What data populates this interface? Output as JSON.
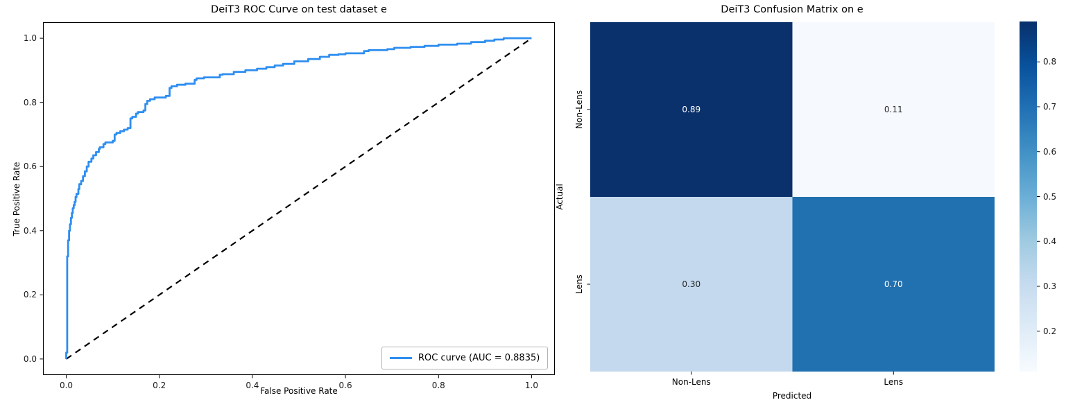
{
  "figure": {
    "background": "#ffffff"
  },
  "roc": {
    "title": "DeiT3 ROC Curve on test dataset e",
    "xlabel": "False Positive Rate",
    "ylabel": "True Positive Rate",
    "x_ticks": [
      "0.0",
      "0.2",
      "0.4",
      "0.6",
      "0.8",
      "1.0"
    ],
    "y_ticks": [
      "0.0",
      "0.2",
      "0.4",
      "0.6",
      "0.8",
      "1.0"
    ],
    "curve_color": "#2e8ef0",
    "diagonal_color": "#000000",
    "legend": {
      "label": "ROC curve (AUC = 0.8835)"
    }
  },
  "cm": {
    "title": "DeiT3 Confusion Matrix on e",
    "xlabel": "Predicted",
    "ylabel": "Actual",
    "row_labels": [
      "Non-Lens",
      "Lens"
    ],
    "col_labels": [
      "Non-Lens",
      "Lens"
    ],
    "cell_labels": [
      [
        "0.89",
        "0.11"
      ],
      [
        "0.30",
        "0.70"
      ]
    ],
    "cell_colors": [
      [
        "#0a316b",
        "#f6f9fe"
      ],
      [
        "#c4d9ee",
        "#2171b0"
      ]
    ],
    "cell_text_colors": [
      [
        "#ffffff",
        "#262626"
      ],
      [
        "#262626",
        "#ffffff"
      ]
    ],
    "colorbar": {
      "vmin": 0.11,
      "vmax": 0.89,
      "ticks": [
        0.8,
        0.7,
        0.6,
        0.5,
        0.4,
        0.3,
        0.2
      ],
      "tick_labels": [
        "0.8",
        "0.7",
        "0.6",
        "0.5",
        "0.4",
        "0.3",
        "0.2"
      ],
      "gradient_top_to_bottom": [
        "#08306b",
        "#08519c",
        "#2171b5",
        "#4292c6",
        "#6baed6",
        "#9ecae1",
        "#c6dbef",
        "#deebf7",
        "#f7fbff"
      ]
    }
  },
  "chart_data": [
    {
      "type": "line",
      "title": "DeiT3 ROC Curve on test dataset e",
      "xlabel": "False Positive Rate",
      "ylabel": "True Positive Rate",
      "xlim": [
        0,
        1
      ],
      "ylim": [
        0,
        1
      ],
      "grid": false,
      "legend_position": "lower right",
      "auc": 0.8835,
      "series": [
        {
          "name": "ROC curve (AUC = 0.8835)",
          "style": "step-solid",
          "color": "#2e8ef0",
          "points": [
            [
              0.0,
              0.0
            ],
            [
              0.002,
              0.02
            ],
            [
              0.002,
              0.3
            ],
            [
              0.004,
              0.32
            ],
            [
              0.004,
              0.355
            ],
            [
              0.006,
              0.37
            ],
            [
              0.006,
              0.39
            ],
            [
              0.008,
              0.4
            ],
            [
              0.01,
              0.42
            ],
            [
              0.012,
              0.44
            ],
            [
              0.014,
              0.455
            ],
            [
              0.016,
              0.47
            ],
            [
              0.018,
              0.48
            ],
            [
              0.02,
              0.49
            ],
            [
              0.022,
              0.505
            ],
            [
              0.026,
              0.515
            ],
            [
              0.028,
              0.53
            ],
            [
              0.032,
              0.545
            ],
            [
              0.036,
              0.555
            ],
            [
              0.04,
              0.57
            ],
            [
              0.044,
              0.585
            ],
            [
              0.048,
              0.6
            ],
            [
              0.054,
              0.615
            ],
            [
              0.058,
              0.625
            ],
            [
              0.064,
              0.635
            ],
            [
              0.07,
              0.645
            ],
            [
              0.072,
              0.655
            ],
            [
              0.08,
              0.66
            ],
            [
              0.084,
              0.67
            ],
            [
              0.1,
              0.675
            ],
            [
              0.104,
              0.68
            ],
            [
              0.108,
              0.7
            ],
            [
              0.116,
              0.705
            ],
            [
              0.124,
              0.71
            ],
            [
              0.132,
              0.715
            ],
            [
              0.138,
              0.72
            ],
            [
              0.142,
              0.75
            ],
            [
              0.15,
              0.755
            ],
            [
              0.154,
              0.765
            ],
            [
              0.166,
              0.77
            ],
            [
              0.17,
              0.775
            ],
            [
              0.174,
              0.795
            ],
            [
              0.18,
              0.805
            ],
            [
              0.19,
              0.81
            ],
            [
              0.214,
              0.815
            ],
            [
              0.222,
              0.82
            ],
            [
              0.226,
              0.845
            ],
            [
              0.238,
              0.85
            ],
            [
              0.256,
              0.855
            ],
            [
              0.276,
              0.858
            ],
            [
              0.28,
              0.87
            ],
            [
              0.296,
              0.875
            ],
            [
              0.33,
              0.878
            ],
            [
              0.336,
              0.886
            ],
            [
              0.36,
              0.888
            ],
            [
              0.385,
              0.895
            ],
            [
              0.41,
              0.9
            ],
            [
              0.43,
              0.905
            ],
            [
              0.448,
              0.91
            ],
            [
              0.466,
              0.915
            ],
            [
              0.49,
              0.92
            ],
            [
              0.52,
              0.928
            ],
            [
              0.545,
              0.935
            ],
            [
              0.565,
              0.942
            ],
            [
              0.585,
              0.948
            ],
            [
              0.6,
              0.95
            ],
            [
              0.64,
              0.953
            ],
            [
              0.65,
              0.96
            ],
            [
              0.69,
              0.963
            ],
            [
              0.705,
              0.966
            ],
            [
              0.74,
              0.97
            ],
            [
              0.77,
              0.973
            ],
            [
              0.8,
              0.976
            ],
            [
              0.84,
              0.98
            ],
            [
              0.87,
              0.983
            ],
            [
              0.9,
              0.988
            ],
            [
              0.92,
              0.992
            ],
            [
              0.94,
              0.996
            ],
            [
              0.952,
              1.0
            ],
            [
              1.0,
              1.0
            ]
          ]
        },
        {
          "name": "chance diagonal",
          "style": "dashed",
          "color": "#000000",
          "points": [
            [
              0,
              0
            ],
            [
              1,
              1
            ]
          ]
        }
      ]
    },
    {
      "type": "heatmap",
      "title": "DeiT3 Confusion Matrix on e",
      "xlabel": "Predicted",
      "ylabel": "Actual",
      "rows": [
        "Non-Lens",
        "Lens"
      ],
      "cols": [
        "Non-Lens",
        "Lens"
      ],
      "values": [
        [
          0.89,
          0.11
        ],
        [
          0.3,
          0.7
        ]
      ],
      "colormap": "Blues",
      "vmin": 0.11,
      "vmax": 0.89,
      "colorbar_ticks": [
        0.8,
        0.7,
        0.6,
        0.5,
        0.4,
        0.3,
        0.2
      ]
    }
  ]
}
